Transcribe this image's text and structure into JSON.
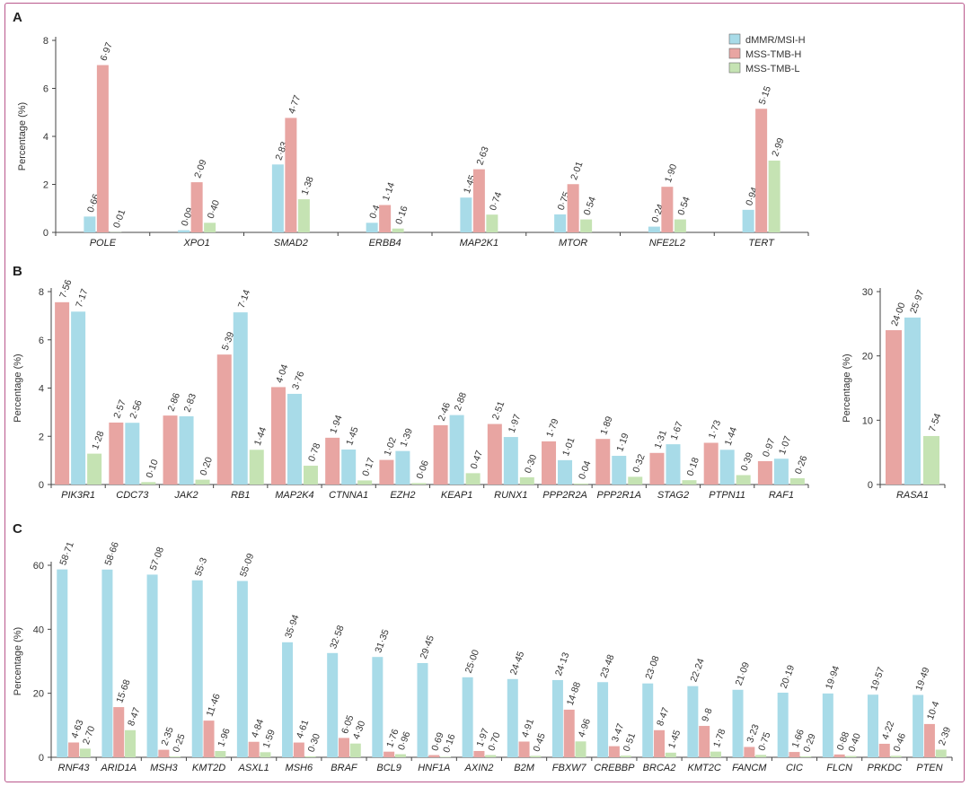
{
  "colors": {
    "dMMR": "#a8dbe8",
    "MSS_TMB_H": "#e8a5a2",
    "MSS_TMB_L": "#c5e3b3",
    "frame": "#b9578c"
  },
  "legend": [
    "dMMR/MSI-H",
    "MSS-TMB-H",
    "MSS-TMB-L"
  ],
  "ylabel": "Percentage (%)",
  "chart_data": [
    {
      "panel": "A",
      "type": "bar",
      "ylabel": "Percentage (%)",
      "ylim": [
        0,
        8
      ],
      "yticks": [
        0,
        2,
        4,
        6,
        8
      ],
      "categories": [
        "POLE",
        "XPO1",
        "SMAD2",
        "ERBB4",
        "MAP2K1",
        "MTOR",
        "NFE2L2",
        "TERT"
      ],
      "series": [
        {
          "name": "dMMR/MSI-H",
          "key": "dMMR",
          "values": [
            0.66,
            0.09,
            2.83,
            0.4,
            1.45,
            0.75,
            0.24,
            0.94
          ],
          "labels": [
            "0·66",
            "0·09",
            "2·83",
            "0·4",
            "1·45",
            "0·75",
            "0·24",
            "0·94"
          ]
        },
        {
          "name": "MSS-TMB-H",
          "key": "MSS_TMB_H",
          "values": [
            6.97,
            2.09,
            4.77,
            1.14,
            2.63,
            2.01,
            1.9,
            5.15
          ],
          "labels": [
            "6·97",
            "2·09",
            "4·77",
            "1·14",
            "2·63",
            "2·01",
            "1·90",
            "5·15"
          ]
        },
        {
          "name": "MSS-TMB-L",
          "key": "MSS_TMB_L",
          "values": [
            0.01,
            0.4,
            1.38,
            0.16,
            0.74,
            0.54,
            0.54,
            2.99
          ],
          "labels": [
            "0·01",
            "0·40",
            "1·38",
            "0·16",
            "0·74",
            "0·54",
            "0·54",
            "2·99"
          ]
        }
      ]
    },
    {
      "panel": "B",
      "type": "bar",
      "ylabel": "Percentage (%)",
      "ylim": [
        0,
        8
      ],
      "yticks": [
        0,
        2,
        4,
        6,
        8
      ],
      "categories": [
        "PIK3R1",
        "CDC73",
        "JAK2",
        "RB1",
        "MAP2K4",
        "CTNNA1",
        "EZH2",
        "KEAP1",
        "RUNX1",
        "PPP2R2A",
        "PPP2R1A",
        "STAG2",
        "PTPN11",
        "RAF1"
      ],
      "series": [
        {
          "key": "MSS_TMB_H",
          "values": [
            7.56,
            2.57,
            2.86,
            5.39,
            4.04,
            1.94,
            1.02,
            2.46,
            2.51,
            1.79,
            1.89,
            1.31,
            1.73,
            0.97
          ],
          "labels": [
            "7·56",
            "2·57",
            "2·86",
            "5·39",
            "4·04",
            "1·94",
            "1·02",
            "2·46",
            "2·51",
            "1·79",
            "1·89",
            "1·31",
            "1·73",
            "0·97"
          ]
        },
        {
          "key": "dMMR",
          "values": [
            7.17,
            2.56,
            2.83,
            7.14,
            3.76,
            1.45,
            1.39,
            2.88,
            1.97,
            1.01,
            1.19,
            1.67,
            1.44,
            1.07
          ],
          "labels": [
            "7·17",
            "2·56",
            "2·83",
            "7·14",
            "3·76",
            "1·45",
            "1·39",
            "2·88",
            "1·97",
            "1·01",
            "1·19",
            "1·67",
            "1·44",
            "1·07"
          ]
        },
        {
          "key": "MSS_TMB_L",
          "values": [
            1.28,
            0.1,
            0.2,
            1.44,
            0.78,
            0.17,
            0.06,
            0.47,
            0.3,
            0.04,
            0.32,
            0.18,
            0.39,
            0.26
          ],
          "labels": [
            "1·28",
            "0·10",
            "0·20",
            "1·44",
            "0·78",
            "0·17",
            "0·06",
            "0·47",
            "0·30",
            "0·04",
            "0·32",
            "0·18",
            "0·39",
            "0·26"
          ]
        }
      ]
    },
    {
      "panel": "B",
      "type": "bar",
      "ylabel": "Percentage (%)",
      "ylim": [
        0,
        30
      ],
      "yticks": [
        0,
        10,
        20,
        30
      ],
      "categories": [
        "RASA1"
      ],
      "series": [
        {
          "key": "MSS_TMB_H",
          "values": [
            24.0
          ],
          "labels": [
            "24·00"
          ]
        },
        {
          "key": "dMMR",
          "values": [
            25.97
          ],
          "labels": [
            "25·97"
          ]
        },
        {
          "key": "MSS_TMB_L",
          "values": [
            7.54
          ],
          "labels": [
            "7·54"
          ]
        }
      ]
    },
    {
      "panel": "C",
      "type": "bar",
      "ylabel": "Percentage (%)",
      "ylim": [
        0,
        60
      ],
      "yticks": [
        0,
        20,
        40,
        60
      ],
      "categories": [
        "RNF43",
        "ARID1A",
        "MSH3",
        "KMT2D",
        "ASXL1",
        "MSH6",
        "BRAF",
        "BCL9",
        "HNF1A",
        "AXIN2",
        "B2M",
        "FBXW7",
        "CREBBP",
        "BRCA2",
        "KMT2C",
        "FANCM",
        "CIC",
        "FLCN",
        "PRKDC",
        "PTEN"
      ],
      "series": [
        {
          "key": "dMMR",
          "values": [
            58.71,
            58.66,
            57.08,
            55.3,
            55.09,
            35.94,
            32.58,
            31.35,
            29.45,
            25.0,
            24.45,
            24.13,
            23.48,
            23.08,
            22.24,
            21.09,
            20.19,
            19.94,
            19.57,
            19.49
          ],
          "labels": [
            "58·71",
            "58·66",
            "57·08",
            "55·3",
            "55·09",
            "35·94",
            "32·58",
            "31·35",
            "29·45",
            "25·00",
            "24·45",
            "24·13",
            "23·48",
            "23·08",
            "22·24",
            "21·09",
            "20·19",
            "19·94",
            "19·57",
            "19·49"
          ]
        },
        {
          "key": "MSS_TMB_H",
          "values": [
            4.63,
            15.68,
            2.35,
            11.46,
            4.84,
            4.61,
            6.05,
            1.76,
            0.69,
            1.97,
            4.91,
            14.88,
            3.47,
            8.47,
            9.8,
            3.23,
            1.66,
            0.88,
            4.22,
            10.4
          ],
          "labels": [
            "4·63",
            "15·68",
            "2·35",
            "11·46",
            "4·84",
            "4·61",
            "6·05",
            "1·76",
            "0·69",
            "1·97",
            "4·91",
            "14·88",
            "3·47",
            "8·47",
            "9·8",
            "3·23",
            "1·66",
            "0·88",
            "4·22",
            "10·4"
          ]
        },
        {
          "key": "MSS_TMB_L",
          "values": [
            2.7,
            8.47,
            0.25,
            1.96,
            1.59,
            0.3,
            4.3,
            0.96,
            0.16,
            0.7,
            0.45,
            4.96,
            0.51,
            1.45,
            1.78,
            0.75,
            0.29,
            0.4,
            0.46,
            2.39
          ],
          "labels": [
            "2·70",
            "8·47",
            "0·25",
            "1·96",
            "1·59",
            "0·30",
            "4·30",
            "0·96",
            "0·16",
            "0·70",
            "0·45",
            "4·96",
            "0·51",
            "1·45",
            "1·78",
            "0·75",
            "0·29",
            "0·40",
            "0·46",
            "2·39"
          ]
        }
      ]
    }
  ]
}
